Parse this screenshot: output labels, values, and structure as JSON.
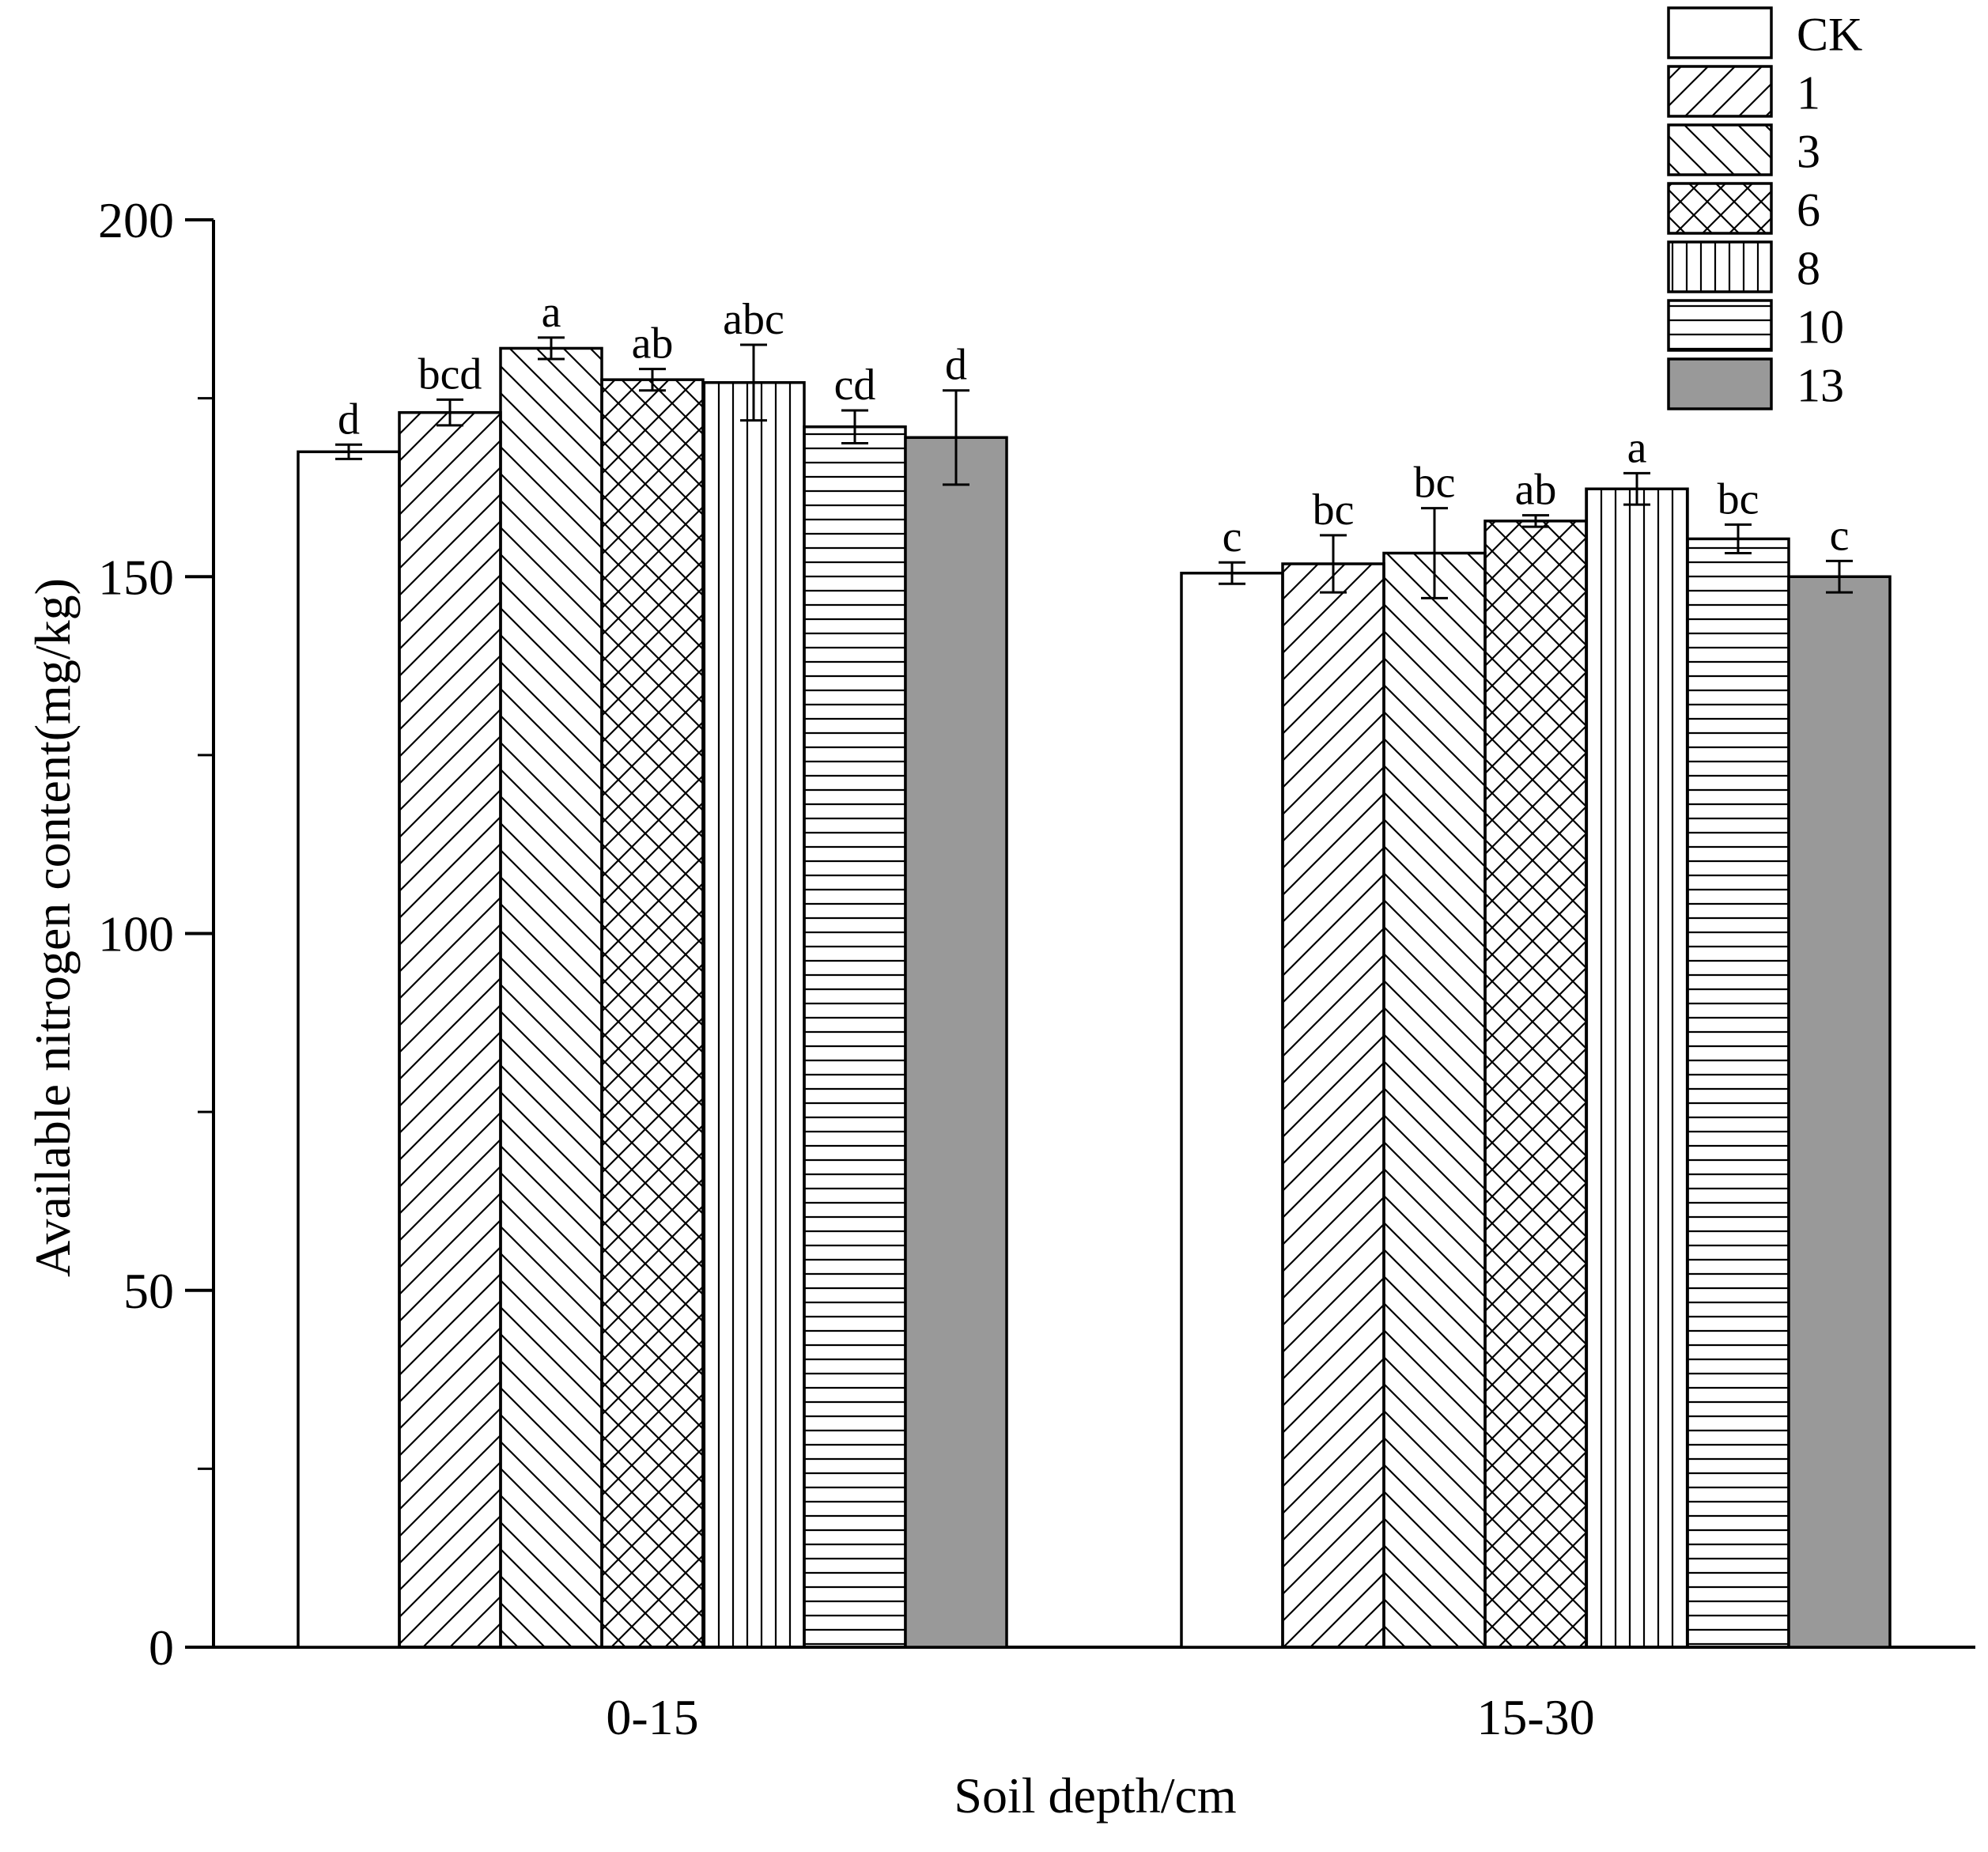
{
  "chart_data": {
    "type": "bar",
    "xlabel": "Soil depth/cm",
    "ylabel": "Available nitrogen content(mg/kg)",
    "categories": [
      "0-15",
      "15-30"
    ],
    "ylim": [
      0,
      200
    ],
    "yticks": [
      0,
      50,
      100,
      150,
      200
    ],
    "ytick_labels": [
      "0",
      "50",
      "100",
      "150",
      "200"
    ],
    "legend_position": "top-right",
    "series": [
      {
        "name": "CK",
        "values": [
          167.5,
          150.5
        ],
        "errors": [
          1.0,
          1.5
        ],
        "letters": [
          "d",
          "c"
        ],
        "pattern": "none",
        "color": "#ffffff"
      },
      {
        "name": "1",
        "values": [
          173.0,
          151.8
        ],
        "errors": [
          1.8,
          4.0
        ],
        "letters": [
          "bcd",
          "bc"
        ],
        "pattern": "forward-diagonal",
        "color": "#ffffff"
      },
      {
        "name": "3",
        "values": [
          182.0,
          153.3
        ],
        "errors": [
          1.5,
          6.3
        ],
        "letters": [
          "a",
          "bc"
        ],
        "pattern": "back-diagonal",
        "color": "#ffffff"
      },
      {
        "name": "6",
        "values": [
          177.6,
          157.8
        ],
        "errors": [
          1.5,
          0.8
        ],
        "letters": [
          "ab",
          "ab"
        ],
        "pattern": "crosshatch",
        "color": "#ffffff"
      },
      {
        "name": "8",
        "values": [
          177.2,
          162.3
        ],
        "errors": [
          5.3,
          2.2
        ],
        "letters": [
          "abc",
          "a"
        ],
        "pattern": "vertical",
        "color": "#ffffff"
      },
      {
        "name": "10",
        "values": [
          171.0,
          155.3
        ],
        "errors": [
          2.3,
          2.0
        ],
        "letters": [
          "cd",
          "bc"
        ],
        "pattern": "horizontal",
        "color": "#ffffff"
      },
      {
        "name": "13",
        "values": [
          169.5,
          150.0
        ],
        "errors": [
          6.6,
          2.2
        ],
        "letters": [
          "d",
          "c"
        ],
        "pattern": "solid",
        "color": "#999999"
      }
    ]
  }
}
